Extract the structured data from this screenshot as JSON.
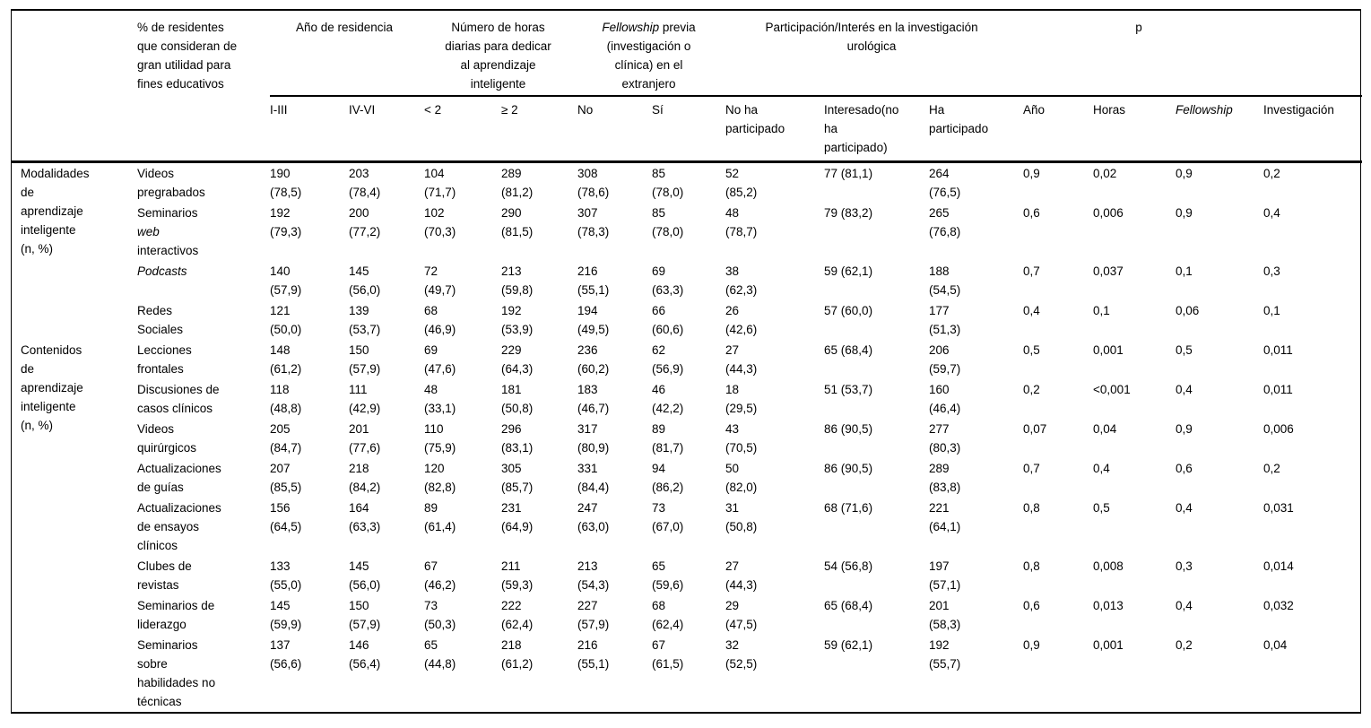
{
  "page": {
    "background": "#ffffff",
    "text_color": "#000000",
    "rule_color": "#000000"
  },
  "table": {
    "col1_header": "% de residentes\nque consideran de\ngran utilidad para\nfines educativos",
    "groups": [
      {
        "label": "Año de residencia"
      },
      {
        "label": "Número de horas\ndiarias para dedicar\nal aprendizaje\ninteligente"
      },
      {
        "label": [
          [
            "Fellowship",
            true
          ],
          [
            " previa\n(investigación o\nclínica) en el\nextranjero",
            false
          ]
        ]
      },
      {
        "label": "Participación/Interés en la investigación\nurológica"
      },
      {
        "label": "p"
      }
    ],
    "subheaders": [
      "I-III",
      "IV-VI",
      "< 2",
      "≥ 2",
      "No",
      "Sí",
      "No ha\nparticipado",
      "Interesado(no\nha\nparticipado)",
      "Ha\nparticipado",
      "Año",
      "Horas",
      [
        [
          "Fellowship",
          true
        ]
      ],
      "Investigación"
    ],
    "row_groups": [
      {
        "label": "Modalidades\nde\naprendizaje\ninteligente\n(n, %)",
        "rows": [
          {
            "label": "Videos\npregrabados",
            "cells": [
              "190\n(78,5)",
              "203\n(78,4)",
              "104\n(71,7)",
              "289\n(81,2)",
              "308\n(78,6)",
              "85\n(78,0)",
              "52\n(85,2)",
              "77 (81,1)",
              "264\n(76,5)",
              "0,9",
              "0,02",
              "0,9",
              "0,2"
            ]
          },
          {
            "label": [
              [
                "Seminarios\n",
                false
              ],
              [
                "web",
                true
              ],
              [
                "\ninteractivos",
                false
              ]
            ],
            "cells": [
              "192\n(79,3)",
              "200\n(77,2)",
              "102\n(70,3)",
              "290\n(81,5)",
              "307\n(78,3)",
              "85\n(78,0)",
              "48\n(78,7)",
              "79 (83,2)",
              "265\n(76,8)",
              "0,6",
              "0,006",
              "0,9",
              "0,4"
            ]
          },
          {
            "label": [
              [
                "Podcasts",
                true
              ]
            ],
            "cells": [
              "140\n(57,9)",
              "145\n(56,0)",
              "72\n(49,7)",
              "213\n(59,8)",
              "216\n(55,1)",
              "69\n(63,3)",
              "38\n(62,3)",
              "59 (62,1)",
              "188\n(54,5)",
              "0,7",
              "0,037",
              "0,1",
              "0,3"
            ]
          },
          {
            "label": "Redes\nSociales",
            "cells": [
              "121\n(50,0)",
              "139\n(53,7)",
              "68\n(46,9)",
              "192\n(53,9)",
              "194\n(49,5)",
              "66\n(60,6)",
              "26\n(42,6)",
              "57 (60,0)",
              "177\n(51,3)",
              "0,4",
              "0,1",
              "0,06",
              "0,1"
            ]
          }
        ]
      },
      {
        "label": "Contenidos\nde\naprendizaje\ninteligente\n(n, %)",
        "rows": [
          {
            "label": "Lecciones\nfrontales",
            "cells": [
              "148\n(61,2)",
              "150\n(57,9)",
              "69\n(47,6)",
              "229\n(64,3)",
              "236\n(60,2)",
              "62\n(56,9)",
              "27\n(44,3)",
              "65 (68,4)",
              "206\n(59,7)",
              "0,5",
              "0,001",
              "0,5",
              "0,011"
            ]
          },
          {
            "label": "Discusiones de\ncasos clínicos",
            "cells": [
              "118\n(48,8)",
              "111\n(42,9)",
              "48\n(33,1)",
              "181\n(50,8)",
              "183\n(46,7)",
              "46\n(42,2)",
              "18\n(29,5)",
              "51 (53,7)",
              "160\n(46,4)",
              "0,2",
              "<0,001",
              "0,4",
              "0,011"
            ]
          },
          {
            "label": "Videos\nquirúrgicos",
            "cells": [
              "205\n(84,7)",
              "201\n(77,6)",
              "110\n(75,9)",
              "296\n(83,1)",
              "317\n(80,9)",
              "89\n(81,7)",
              "43\n(70,5)",
              "86 (90,5)",
              "277\n(80,3)",
              "0,07",
              "0,04",
              "0,9",
              "0,006"
            ]
          },
          {
            "label": "Actualizaciones\nde guías",
            "cells": [
              "207\n(85,5)",
              "218\n(84,2)",
              "120\n(82,8)",
              "305\n(85,7)",
              "331\n(84,4)",
              "94\n(86,2)",
              "50\n(82,0)",
              "86 (90,5)",
              "289\n(83,8)",
              "0,7",
              "0,4",
              "0,6",
              "0,2"
            ]
          },
          {
            "label": "Actualizaciones\nde ensayos\nclínicos",
            "cells": [
              "156\n(64,5)",
              "164\n(63,3)",
              "89\n(61,4)",
              "231\n(64,9)",
              "247\n(63,0)",
              "73\n(67,0)",
              "31\n(50,8)",
              "68 (71,6)",
              "221\n(64,1)",
              "0,8",
              "0,5",
              "0,4",
              "0,031"
            ]
          },
          {
            "label": "Clubes de\nrevistas",
            "cells": [
              "133\n(55,0)",
              "145\n(56,0)",
              "67\n(46,2)",
              "211\n(59,3)",
              "213\n(54,3)",
              "65\n(59,6)",
              "27\n(44,3)",
              "54 (56,8)",
              "197\n(57,1)",
              "0,8",
              "0,008",
              "0,3",
              "0,014"
            ]
          },
          {
            "label": "Seminarios de\nliderazgo",
            "cells": [
              "145\n(59,9)",
              "150\n(57,9)",
              "73\n(50,3)",
              "222\n(62,4)",
              "227\n(57,9)",
              "68\n(62,4)",
              "29\n(47,5)",
              "65 (68,4)",
              "201\n(58,3)",
              "0,6",
              "0,013",
              "0,4",
              "0,032"
            ]
          },
          {
            "label": "Seminarios\nsobre\nhabilidades no\ntécnicas",
            "cells": [
              "137\n(56,6)",
              "146\n(56,4)",
              "65\n(44,8)",
              "218\n(61,2)",
              "216\n(55,1)",
              "67\n(61,5)",
              "32\n(52,5)",
              "59 (62,1)",
              "192\n(55,7)",
              "0,9",
              "0,001",
              "0,2",
              "0,04"
            ]
          }
        ]
      }
    ]
  }
}
